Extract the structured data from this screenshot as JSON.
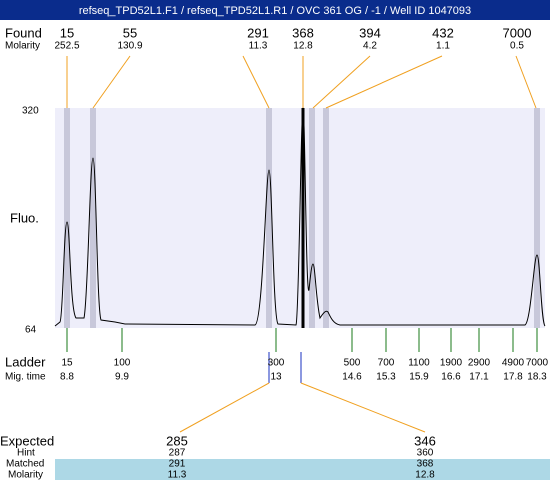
{
  "header": {
    "title": "refseq_TPD52L1.F1 / refseq_TPD52L1.R1 / OVC 361 OG / -1 / Well ID 1047093"
  },
  "found": {
    "label": "Found",
    "molarity_label": "Molarity",
    "sizes": [
      15,
      55,
      291,
      368,
      394,
      432,
      7000
    ],
    "molarity": [
      252.5,
      130.9,
      11.3,
      12.8,
      4.2,
      1.1,
      0.5
    ]
  },
  "axis": {
    "label": "Fluo.",
    "top": 320,
    "bottom": 64
  },
  "ladder": {
    "label": "Ladder",
    "mig_label": "Mig. time",
    "sizes": [
      15,
      100,
      300,
      500,
      700,
      1100,
      1900,
      2900,
      4900,
      7000
    ],
    "mig_times": [
      8.8,
      9.9,
      13,
      14.6,
      15.3,
      15.9,
      16.6,
      17.1,
      17.8,
      18.3
    ]
  },
  "expected": {
    "label": "Expected",
    "hint_label": "Hint",
    "matched_label": "Matched",
    "molarity_label": "Molarity",
    "sizes": [
      285,
      346
    ],
    "hint": [
      287,
      360
    ],
    "matched": [
      291,
      368
    ],
    "molarity": [
      11.3,
      12.8
    ]
  }
}
